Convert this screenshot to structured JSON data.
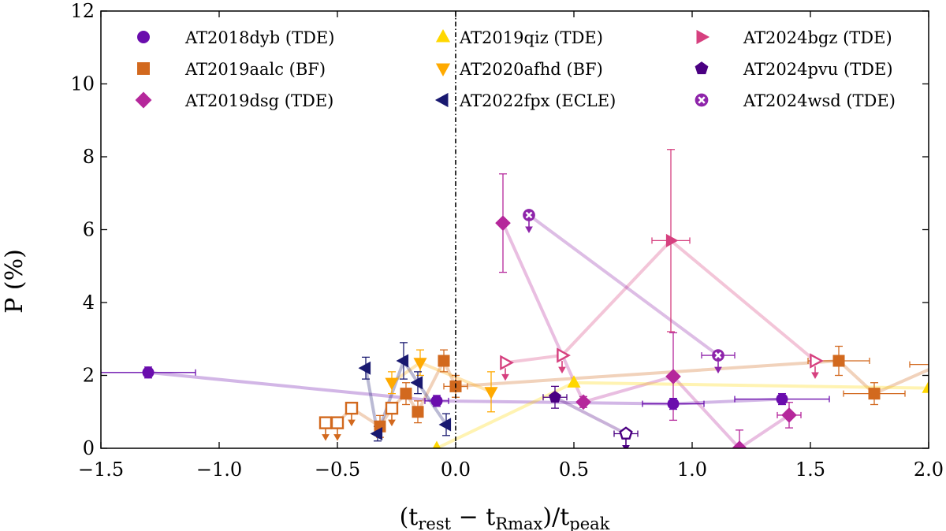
{
  "chart_data": {
    "type": "scatter",
    "title": "",
    "xlabel": "(t_rest − t_Rmax)/t_peak",
    "ylabel": "P (%)",
    "xlabel_parts": {
      "open": "(t",
      "sub1": "rest",
      "mid": " − t",
      "sub2": "Rmax",
      "close": ")/t",
      "sub3": "peak"
    },
    "ylabel_parts": {
      "main": "P (%)"
    },
    "xlim": [
      -1.5,
      2.0
    ],
    "ylim": [
      0,
      12
    ],
    "xticks": [
      -1.5,
      -1.0,
      -0.5,
      0.0,
      0.5,
      1.0,
      1.5,
      2.0
    ],
    "xtick_labels": [
      "−1.5",
      "−1.0",
      "−0.5",
      "0.0",
      "0.5",
      "1.0",
      "1.5",
      "2.0"
    ],
    "yticks": [
      0,
      2,
      4,
      6,
      8,
      10,
      12
    ],
    "ytick_labels": [
      "0",
      "2",
      "4",
      "6",
      "8",
      "10",
      "12"
    ],
    "reference_line": {
      "x": 0.0,
      "style": "dash-dot"
    },
    "legend_position": "top",
    "series": [
      {
        "name": "AT2018dyb (TDE)",
        "marker": "circle",
        "color": "#6a0dad",
        "points": [
          {
            "x": -1.3,
            "y": 2.08,
            "xerr": 0.2,
            "yerr": 0.15
          },
          {
            "x": -0.08,
            "y": 1.3,
            "xerr": 0.05,
            "yerr": 0.15
          },
          {
            "x": 0.92,
            "y": 1.22,
            "xerr": 0.13,
            "yerr": 0.15
          },
          {
            "x": 1.38,
            "y": 1.35,
            "xerr": 0.2,
            "yerr": 0.15
          }
        ]
      },
      {
        "name": "AT2019aalc (BF)",
        "marker": "square",
        "color": "#d2691e",
        "points": [
          {
            "x": -0.55,
            "y": 0.7,
            "upper_limit": true
          },
          {
            "x": -0.5,
            "y": 0.7,
            "upper_limit": true
          },
          {
            "x": -0.44,
            "y": 1.1,
            "upper_limit": true
          },
          {
            "x": -0.32,
            "y": 0.6,
            "yerr": 0.3
          },
          {
            "x": -0.27,
            "y": 1.1,
            "upper_limit": true
          },
          {
            "x": -0.21,
            "y": 1.5,
            "yerr": 0.3
          },
          {
            "x": -0.16,
            "y": 1.0,
            "yerr": 0.3
          },
          {
            "x": -0.05,
            "y": 2.4,
            "yerr": 0.3
          },
          {
            "x": 0.0,
            "y": 1.7,
            "xerr": 0.05,
            "yerr": 0.3
          },
          {
            "x": 1.62,
            "y": 2.4,
            "xerr": 0.13,
            "yerr": 0.4
          },
          {
            "x": 1.77,
            "y": 1.5,
            "xerr": 0.13,
            "yerr": 0.3
          },
          {
            "x": 2.05,
            "y": 2.3,
            "xerr": 0.13,
            "yerr": 0.3
          }
        ]
      },
      {
        "name": "AT2019dsg (TDE)",
        "marker": "diamond",
        "color": "#b5279b",
        "points": [
          {
            "x": 0.2,
            "y": 6.18,
            "yerr": 1.35
          },
          {
            "x": 0.54,
            "y": 1.27,
            "yerr": 0.15
          },
          {
            "x": 0.92,
            "y": 1.97,
            "yerr": 1.2
          },
          {
            "x": 1.2,
            "y": 0.0,
            "yerr": 0.5
          },
          {
            "x": 1.41,
            "y": 0.91,
            "xerr": 0.05,
            "yerr": 0.35
          }
        ]
      },
      {
        "name": "AT2019qiz (TDE)",
        "marker": "triangle-up",
        "color": "#ffd700",
        "points": [
          {
            "x": -0.08,
            "y": 0.0
          },
          {
            "x": 0.5,
            "y": 1.8
          },
          {
            "x": 2.0,
            "y": 1.65
          }
        ]
      },
      {
        "name": "AT2020afhd (BF)",
        "marker": "triangle-down",
        "color": "#ffaa00",
        "points": [
          {
            "x": -0.27,
            "y": 1.8,
            "yerr": 0.3
          },
          {
            "x": -0.15,
            "y": 2.35,
            "yerr": 0.35
          },
          {
            "x": 0.15,
            "y": 1.55,
            "yerr": 0.55
          }
        ]
      },
      {
        "name": "AT2022fpx (ECLE)",
        "marker": "triangle-left",
        "color": "#191970",
        "points": [
          {
            "x": -0.38,
            "y": 2.2,
            "yerr": 0.3
          },
          {
            "x": -0.33,
            "y": 0.4,
            "yerr": 0.2
          },
          {
            "x": -0.22,
            "y": 2.4,
            "yerr": 0.5
          },
          {
            "x": -0.16,
            "y": 1.8,
            "yerr": 0.3
          },
          {
            "x": -0.04,
            "y": 0.65,
            "yerr": 0.3
          }
        ]
      },
      {
        "name": "AT2024bgz (TDE)",
        "marker": "triangle-right",
        "color": "#d6407f",
        "points": [
          {
            "x": 0.21,
            "y": 2.35,
            "upper_limit": true
          },
          {
            "x": 0.45,
            "y": 2.55,
            "upper_limit": true
          },
          {
            "x": 0.91,
            "y": 5.7,
            "xerr": 0.08,
            "yerr": 2.5
          },
          {
            "x": 1.52,
            "y": 2.4,
            "upper_limit": true
          }
        ]
      },
      {
        "name": "AT2024pvu (TDE)",
        "marker": "pentagon",
        "color": "#4b0082",
        "points": [
          {
            "x": 0.42,
            "y": 1.4,
            "xerr": 0.05,
            "yerr": 0.3
          },
          {
            "x": 0.72,
            "y": 0.4,
            "xerr": 0.05,
            "upper_limit": true
          }
        ]
      },
      {
        "name": "AT2024wsd (TDE)",
        "marker": "x-circle",
        "color": "#8e24aa",
        "points": [
          {
            "x": 0.31,
            "y": 6.4,
            "upper_limit": true
          },
          {
            "x": 1.11,
            "y": 2.55,
            "xerr": 0.07,
            "upper_limit": true
          }
        ]
      }
    ]
  }
}
